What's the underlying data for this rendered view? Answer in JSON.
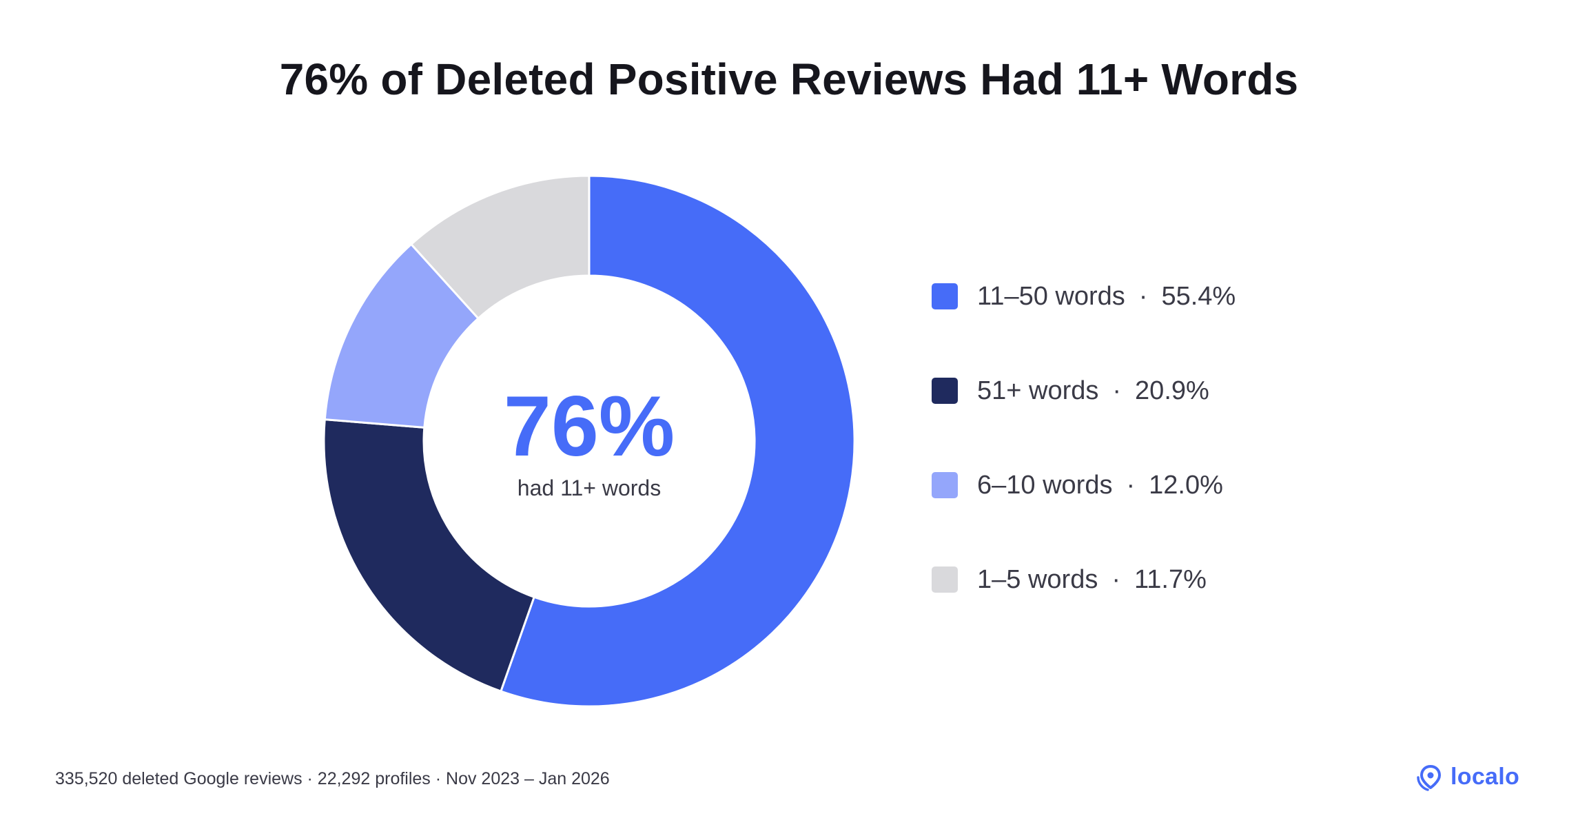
{
  "title": "76% of Deleted Positive Reviews Had 11+ Words",
  "center": {
    "value": "76%",
    "caption": "had 11+ words"
  },
  "legend": [
    {
      "label": "11–50 words",
      "separator": "·",
      "value": "55.4%",
      "color": "#466cf8"
    },
    {
      "label": "51+ words",
      "separator": "·",
      "value": "20.9%",
      "color": "#1f2a5e"
    },
    {
      "label": "6–10 words",
      "separator": "·",
      "value": "12.0%",
      "color": "#94a6fb"
    },
    {
      "label": "1–5 words",
      "separator": "·",
      "value": "11.7%",
      "color": "#d9d9dc"
    }
  ],
  "footer": "335,520 deleted Google reviews · 22,292 profiles · Nov 2023 – Jan 2026",
  "brand": "localo",
  "colors": {
    "accent": "#466cf8",
    "text": "#16161d",
    "muted_text": "#3a3a46"
  },
  "chart_data": {
    "type": "pie",
    "style": "donut",
    "title": "76% of Deleted Positive Reviews Had 11+ Words",
    "categories": [
      "11–50 words",
      "51+ words",
      "6–10 words",
      "1–5 words"
    ],
    "values": [
      55.4,
      20.9,
      12.0,
      11.7
    ],
    "colors": [
      "#466cf8",
      "#1f2a5e",
      "#94a6fb",
      "#d9d9dc"
    ],
    "center_label": "76%",
    "center_sublabel": "had 11+ words",
    "legend_position": "right"
  }
}
